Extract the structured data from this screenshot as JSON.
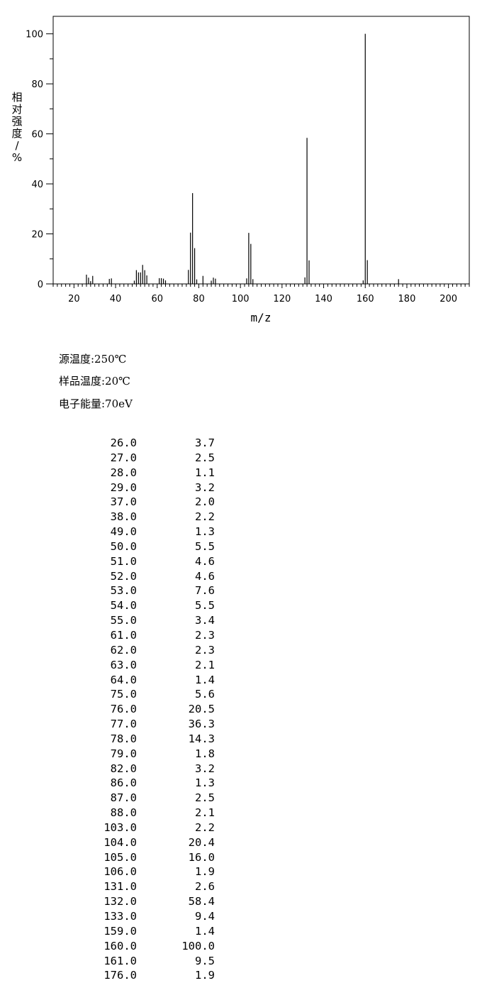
{
  "chart_data": {
    "type": "bar",
    "xlabel": "m/z",
    "ylabel": "相对强度/%",
    "xlim": [
      10,
      210
    ],
    "ylim": [
      0,
      107
    ],
    "xticks": [
      20,
      40,
      60,
      80,
      100,
      120,
      140,
      160,
      180,
      200
    ],
    "yticks": [
      0,
      20,
      40,
      60,
      80,
      100
    ],
    "peaks": [
      {
        "mz": 26.0,
        "intensity": 3.7
      },
      {
        "mz": 27.0,
        "intensity": 2.5
      },
      {
        "mz": 28.0,
        "intensity": 1.1
      },
      {
        "mz": 29.0,
        "intensity": 3.2
      },
      {
        "mz": 37.0,
        "intensity": 2.0
      },
      {
        "mz": 38.0,
        "intensity": 2.2
      },
      {
        "mz": 49.0,
        "intensity": 1.3
      },
      {
        "mz": 50.0,
        "intensity": 5.5
      },
      {
        "mz": 51.0,
        "intensity": 4.6
      },
      {
        "mz": 52.0,
        "intensity": 4.6
      },
      {
        "mz": 53.0,
        "intensity": 7.6
      },
      {
        "mz": 54.0,
        "intensity": 5.5
      },
      {
        "mz": 55.0,
        "intensity": 3.4
      },
      {
        "mz": 61.0,
        "intensity": 2.3
      },
      {
        "mz": 62.0,
        "intensity": 2.3
      },
      {
        "mz": 63.0,
        "intensity": 2.1
      },
      {
        "mz": 64.0,
        "intensity": 1.4
      },
      {
        "mz": 75.0,
        "intensity": 5.6
      },
      {
        "mz": 76.0,
        "intensity": 20.5
      },
      {
        "mz": 77.0,
        "intensity": 36.3
      },
      {
        "mz": 78.0,
        "intensity": 14.3
      },
      {
        "mz": 79.0,
        "intensity": 1.8
      },
      {
        "mz": 82.0,
        "intensity": 3.2
      },
      {
        "mz": 86.0,
        "intensity": 1.3
      },
      {
        "mz": 87.0,
        "intensity": 2.5
      },
      {
        "mz": 88.0,
        "intensity": 2.1
      },
      {
        "mz": 103.0,
        "intensity": 2.2
      },
      {
        "mz": 104.0,
        "intensity": 20.4
      },
      {
        "mz": 105.0,
        "intensity": 16.0
      },
      {
        "mz": 106.0,
        "intensity": 1.9
      },
      {
        "mz": 131.0,
        "intensity": 2.6
      },
      {
        "mz": 132.0,
        "intensity": 58.4
      },
      {
        "mz": 133.0,
        "intensity": 9.4
      },
      {
        "mz": 159.0,
        "intensity": 1.4
      },
      {
        "mz": 160.0,
        "intensity": 100.0
      },
      {
        "mz": 161.0,
        "intensity": 9.5
      },
      {
        "mz": 176.0,
        "intensity": 1.9
      }
    ],
    "peaks_text": [
      {
        "mz": "26.0",
        "ab": "3.7"
      },
      {
        "mz": "27.0",
        "ab": "2.5"
      },
      {
        "mz": "28.0",
        "ab": "1.1"
      },
      {
        "mz": "29.0",
        "ab": "3.2"
      },
      {
        "mz": "37.0",
        "ab": "2.0"
      },
      {
        "mz": "38.0",
        "ab": "2.2"
      },
      {
        "mz": "49.0",
        "ab": "1.3"
      },
      {
        "mz": "50.0",
        "ab": "5.5"
      },
      {
        "mz": "51.0",
        "ab": "4.6"
      },
      {
        "mz": "52.0",
        "ab": "4.6"
      },
      {
        "mz": "53.0",
        "ab": "7.6"
      },
      {
        "mz": "54.0",
        "ab": "5.5"
      },
      {
        "mz": "55.0",
        "ab": "3.4"
      },
      {
        "mz": "61.0",
        "ab": "2.3"
      },
      {
        "mz": "62.0",
        "ab": "2.3"
      },
      {
        "mz": "63.0",
        "ab": "2.1"
      },
      {
        "mz": "64.0",
        "ab": "1.4"
      },
      {
        "mz": "75.0",
        "ab": "5.6"
      },
      {
        "mz": "76.0",
        "ab": "20.5"
      },
      {
        "mz": "77.0",
        "ab": "36.3"
      },
      {
        "mz": "78.0",
        "ab": "14.3"
      },
      {
        "mz": "79.0",
        "ab": "1.8"
      },
      {
        "mz": "82.0",
        "ab": "3.2"
      },
      {
        "mz": "86.0",
        "ab": "1.3"
      },
      {
        "mz": "87.0",
        "ab": "2.5"
      },
      {
        "mz": "88.0",
        "ab": "2.1"
      },
      {
        "mz": "103.0",
        "ab": "2.2"
      },
      {
        "mz": "104.0",
        "ab": "20.4"
      },
      {
        "mz": "105.0",
        "ab": "16.0"
      },
      {
        "mz": "106.0",
        "ab": "1.9"
      },
      {
        "mz": "131.0",
        "ab": "2.6"
      },
      {
        "mz": "132.0",
        "ab": "58.4"
      },
      {
        "mz": "133.0",
        "ab": "9.4"
      },
      {
        "mz": "159.0",
        "ab": "1.4"
      },
      {
        "mz": "160.0",
        "ab": "100.0"
      },
      {
        "mz": "161.0",
        "ab": "9.5"
      },
      {
        "mz": "176.0",
        "ab": "1.9"
      }
    ]
  },
  "conditions": {
    "source_temp": "源温度:250℃",
    "sample_temp": "样品温度:20℃",
    "electron_energy": "电子能量:70eV"
  }
}
